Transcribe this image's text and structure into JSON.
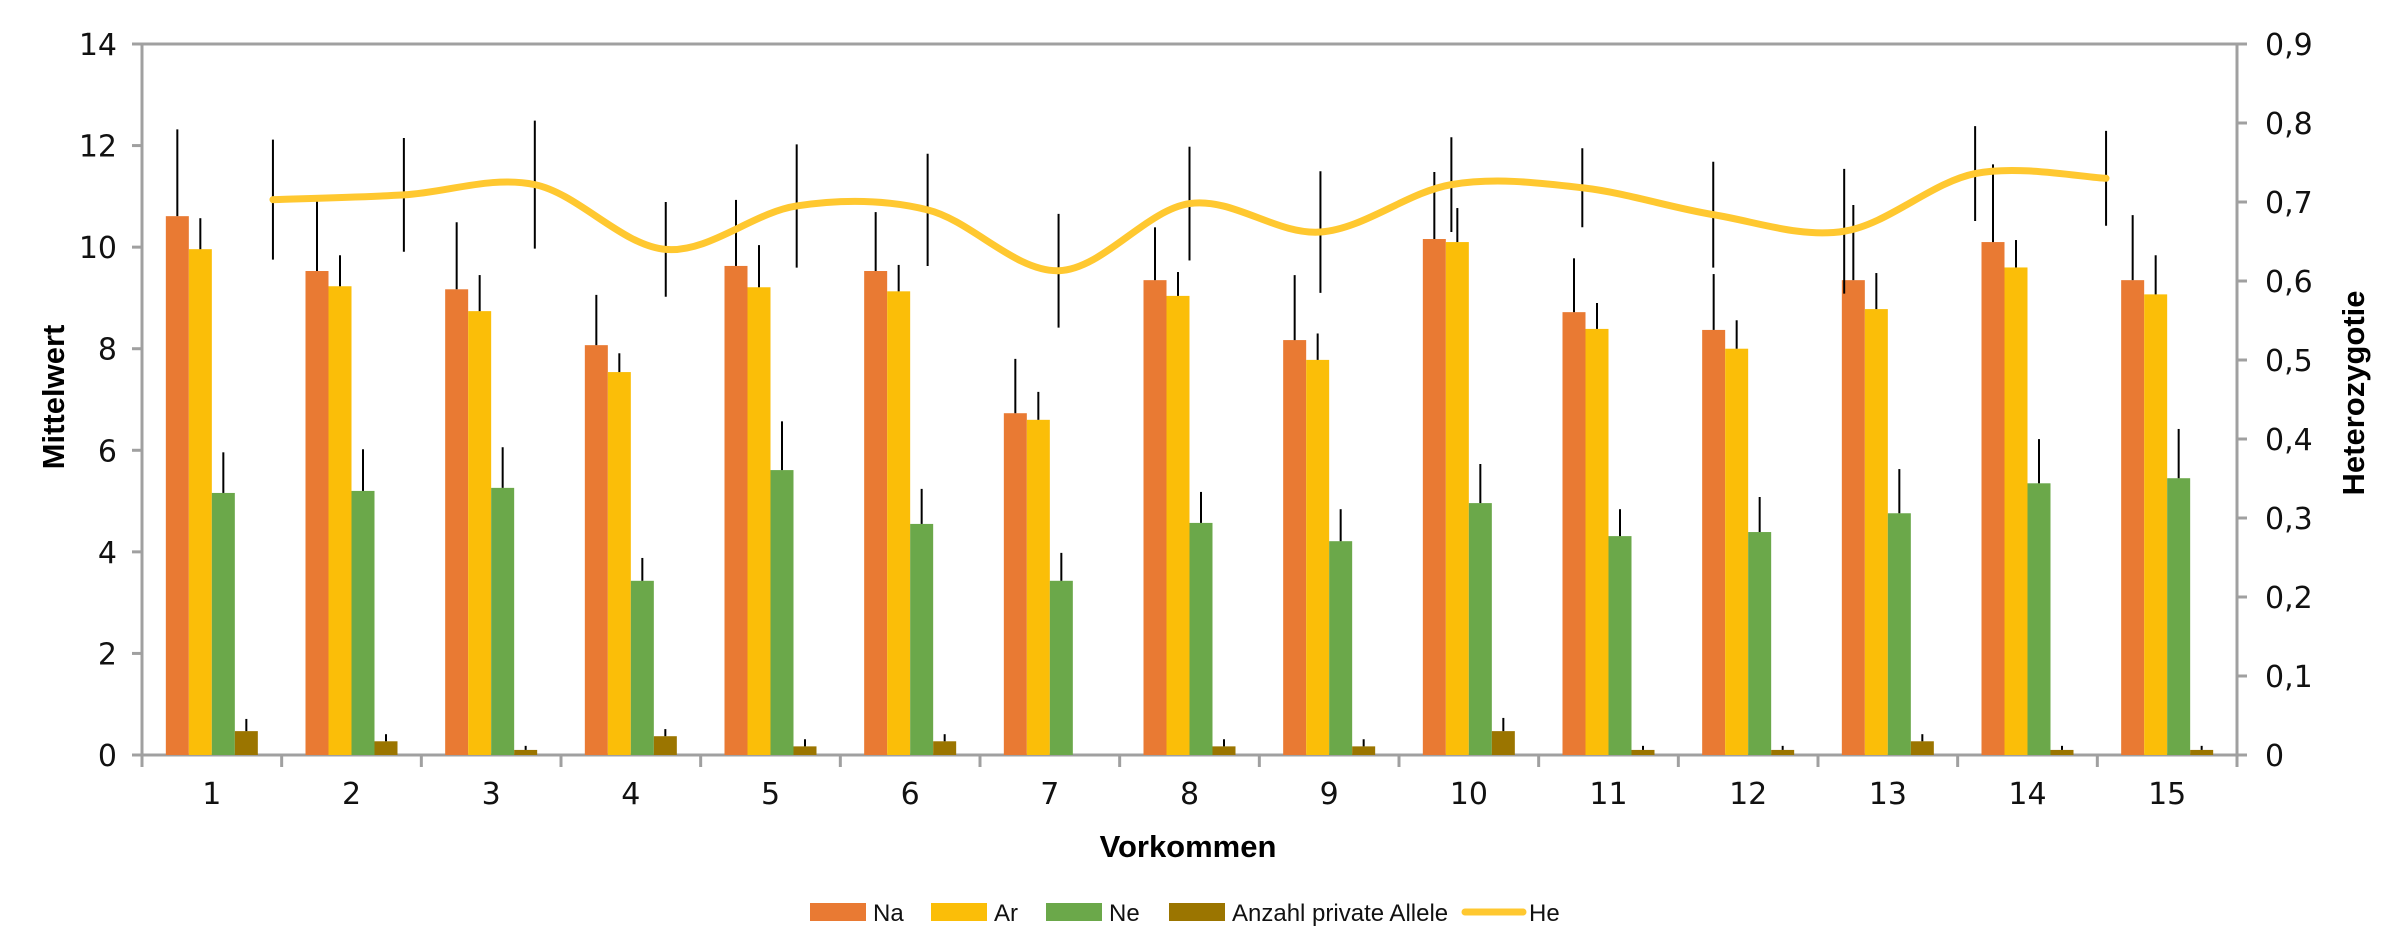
{
  "chart_data": {
    "type": "bar",
    "title": "",
    "xlabel": "Vorkommen",
    "ylabel": "Mittelwert",
    "y2label": "Heterozygotie",
    "ylim": [
      0,
      14
    ],
    "y2lim": [
      0,
      0.9
    ],
    "yticks": [
      "0",
      "2",
      "4",
      "6",
      "8",
      "10",
      "12",
      "14"
    ],
    "y2ticks": [
      "0",
      "0,1",
      "0,2",
      "0,3",
      "0,4",
      "0,5",
      "0,6",
      "0,7",
      "0,8",
      "0,9"
    ],
    "categories": [
      "1",
      "2",
      "3",
      "4",
      "5",
      "6",
      "7",
      "8",
      "9",
      "10",
      "11",
      "12",
      "13",
      "14",
      "15"
    ],
    "grid": false,
    "legend_position": "bottom",
    "series": [
      {
        "name": "Na",
        "kind": "bar",
        "axis": "left",
        "color": "#E97A33",
        "values": [
          10.61,
          9.53,
          9.17,
          8.07,
          9.63,
          9.53,
          6.73,
          9.35,
          8.17,
          10.16,
          8.72,
          8.37,
          9.35,
          10.1,
          9.35
        ],
        "error": [
          1.71,
          1.47,
          1.32,
          0.99,
          1.3,
          1.16,
          1.07,
          1.04,
          1.28,
          1.32,
          1.06,
          1.1,
          1.48,
          1.53,
          1.28
        ]
      },
      {
        "name": "Ar",
        "kind": "bar",
        "axis": "left",
        "color": "#FBBE08",
        "values": [
          9.96,
          9.23,
          8.74,
          7.54,
          9.21,
          9.13,
          6.6,
          9.04,
          7.78,
          10.1,
          8.39,
          8.0,
          8.78,
          9.6,
          9.07
        ],
        "error": [
          0.61,
          0.61,
          0.71,
          0.37,
          0.83,
          0.52,
          0.55,
          0.47,
          0.52,
          0.67,
          0.51,
          0.56,
          0.71,
          0.54,
          0.77
        ]
      },
      {
        "name": "Ne",
        "kind": "bar",
        "axis": "left",
        "color": "#6BA84A",
        "values": [
          5.16,
          5.2,
          5.26,
          3.43,
          5.61,
          4.55,
          3.43,
          4.57,
          4.21,
          4.96,
          4.31,
          4.39,
          4.76,
          5.35,
          5.45
        ],
        "error": [
          0.8,
          0.82,
          0.8,
          0.45,
          0.96,
          0.69,
          0.55,
          0.61,
          0.63,
          0.77,
          0.53,
          0.69,
          0.87,
          0.87,
          0.97
        ]
      },
      {
        "name": "Anzahl private Allele",
        "kind": "bar",
        "axis": "left",
        "color": "#9B7500",
        "values": [
          0.47,
          0.27,
          0.1,
          0.37,
          0.17,
          0.27,
          0,
          0.17,
          0.17,
          0.47,
          0.1,
          0.1,
          0.27,
          0.1,
          0.1
        ],
        "error": [
          0.24,
          0.14,
          0.08,
          0.14,
          0.14,
          0.14,
          0,
          0.14,
          0.14,
          0.26,
          0.08,
          0.08,
          0.14,
          0.08,
          0.08
        ]
      },
      {
        "name": "He",
        "kind": "line",
        "smooth": true,
        "axis": "right",
        "color": "#FFC830",
        "values": [
          0.703,
          0.709,
          0.722,
          0.64,
          0.695,
          0.69,
          0.613,
          0.698,
          0.662,
          0.722,
          0.718,
          0.684,
          0.663,
          0.736,
          0.73
        ],
        "error": [
          0.076,
          0.072,
          0.081,
          0.06,
          0.078,
          0.071,
          0.072,
          0.072,
          0.077,
          0.06,
          0.05,
          0.067,
          0.079,
          0.06,
          0.06
        ]
      }
    ]
  }
}
